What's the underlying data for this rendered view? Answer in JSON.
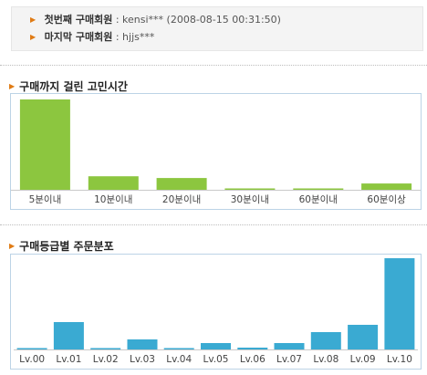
{
  "buyers": {
    "first_label": "첫번째 구매회원",
    "first_value": "kensi*** (2008-08-15 00:31:50)",
    "last_label": "마지막 구매회원",
    "last_value": "hjjs***",
    "separator": ":"
  },
  "time_section": {
    "title": "구매까지 걸린 고민시간"
  },
  "grade_section": {
    "title": "구매등급별 주문분포"
  },
  "colors": {
    "green": "#8cc63f",
    "blue": "#3aaad2",
    "accent": "#e07b14"
  },
  "chart_data": [
    {
      "type": "bar",
      "title": "구매까지 걸린 고민시간",
      "categories": [
        "5분이내",
        "10분이내",
        "20분이내",
        "30분이내",
        "60분이내",
        "60분이상"
      ],
      "values": [
        100,
        15,
        13,
        1,
        1,
        7
      ],
      "ylim": [
        0,
        100
      ],
      "grid": false
    },
    {
      "type": "bar",
      "title": "구매등급별 주문분포",
      "categories": [
        "Lv.00",
        "Lv.01",
        "Lv.02",
        "Lv.03",
        "Lv.04",
        "Lv.05",
        "Lv.06",
        "Lv.07",
        "Lv.08",
        "Lv.09",
        "Lv.10"
      ],
      "values": [
        1,
        30,
        1,
        11,
        1,
        7,
        2,
        7,
        19,
        27,
        100
      ],
      "ylim": [
        0,
        100
      ],
      "grid": false
    }
  ]
}
